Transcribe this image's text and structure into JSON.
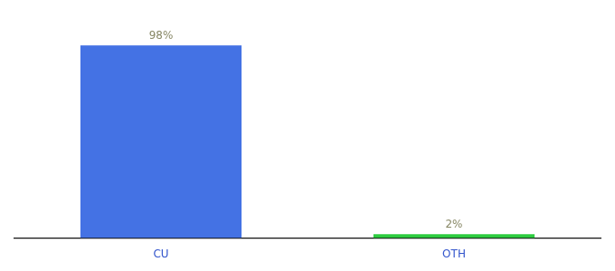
{
  "chart_data": {
    "type": "bar",
    "categories": [
      "CU",
      "OTH"
    ],
    "values": [
      98,
      2
    ],
    "colors": [
      "#4472e4",
      "#2ecc40"
    ],
    "ylim": [
      0,
      110
    ],
    "data_labels": true,
    "value_labels": [
      "98%",
      "2%"
    ],
    "tick_labels": "x",
    "grid": false
  }
}
